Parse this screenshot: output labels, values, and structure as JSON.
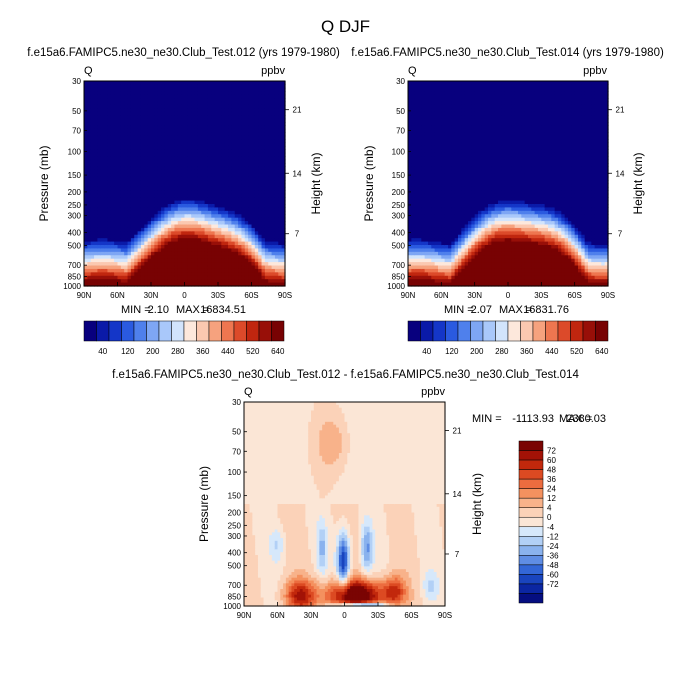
{
  "figure": {
    "title": "Q DJF"
  },
  "chart_data": [
    {
      "type": "heatmap",
      "title": "f.e15a6.FAMIPC5.ne30_ne30.Club_Test.012 (yrs 1979-1980)",
      "left_label": "Q",
      "right_label": "ppbv",
      "xlabel": "",
      "ylabel": "Pressure (mb)",
      "y2label": "Height (km)",
      "x_ticks": [
        "90N",
        "60N",
        "30N",
        "0",
        "30S",
        "60S",
        "90S"
      ],
      "y_ticks": [
        "30",
        "50",
        "70",
        "100",
        "150",
        "200",
        "250",
        "300",
        "400",
        "500",
        "700",
        "850",
        "1000"
      ],
      "y2_ticks": [
        "21",
        "14",
        "7"
      ],
      "stats": {
        "min_label": "MIN =",
        "min_value": "2.10",
        "max_label": "MAX =",
        "max_value": "16834.51"
      },
      "colorbar_labels": [
        "40",
        "120",
        "200",
        "280",
        "360",
        "440",
        "520",
        "640"
      ]
    },
    {
      "type": "heatmap",
      "title": "f.e15a6.FAMIPC5.ne30_ne30.Club_Test.014 (yrs 1979-1980)",
      "left_label": "Q",
      "right_label": "ppbv",
      "xlabel": "",
      "ylabel": "Pressure (mb)",
      "y2label": "Height (km)",
      "x_ticks": [
        "90N",
        "60N",
        "30N",
        "0",
        "30S",
        "60S",
        "90S"
      ],
      "y_ticks": [
        "30",
        "50",
        "70",
        "100",
        "150",
        "200",
        "250",
        "300",
        "400",
        "500",
        "700",
        "850",
        "1000"
      ],
      "y2_ticks": [
        "21",
        "14",
        "7"
      ],
      "stats": {
        "min_label": "MIN =",
        "min_value": "2.07",
        "max_label": "MAX =",
        "max_value": "16831.76"
      },
      "colorbar_labels": [
        "40",
        "120",
        "200",
        "280",
        "360",
        "440",
        "520",
        "640"
      ]
    },
    {
      "type": "heatmap",
      "title": "f.e15a6.FAMIPC5.ne30_ne30.Club_Test.012 - f.e15a6.FAMIPC5.ne30_ne30.Club_Test.014",
      "left_label": "Q",
      "right_label": "ppbv",
      "xlabel": "",
      "ylabel": "Pressure (mb)",
      "y2label": "Height (km)",
      "x_ticks": [
        "90N",
        "60N",
        "30N",
        "0",
        "30S",
        "60S",
        "90S"
      ],
      "y_ticks": [
        "30",
        "50",
        "70",
        "100",
        "150",
        "200",
        "250",
        "300",
        "400",
        "500",
        "700",
        "850",
        "1000"
      ],
      "y2_ticks": [
        "21",
        "14",
        "7"
      ],
      "stats": {
        "min_label": "MIN =",
        "min_value": "-1113.93",
        "max_label": "MAX =",
        "max_value": "2380.03"
      },
      "colorbar_labels": [
        "72",
        "60",
        "48",
        "36",
        "24",
        "12",
        "4",
        "0",
        "-4",
        "-12",
        "-24",
        "-36",
        "-48",
        "-60",
        "-72"
      ]
    }
  ],
  "colors": {
    "abs_palette": [
      "#08007e",
      "#0a1aa8",
      "#1436c8",
      "#2a5ae0",
      "#4f80ec",
      "#7ea6f4",
      "#a9c8fa",
      "#d2e4fc",
      "#fde8dc",
      "#fbc8b0",
      "#f6a27e",
      "#ee7650",
      "#dc4a2a",
      "#c0260f",
      "#980f08",
      "#780203"
    ],
    "diff_palette": [
      "#7a0403",
      "#a21206",
      "#c2280c",
      "#dc4a22",
      "#ec6c3f",
      "#f4915f",
      "#f8b28a",
      "#fbd2b8",
      "#fbe6d6",
      "#d6e8fb",
      "#b2d0f6",
      "#8ab2ee",
      "#5f8de4",
      "#3366d6",
      "#1944be",
      "#0b26a2",
      "#050e80"
    ]
  }
}
